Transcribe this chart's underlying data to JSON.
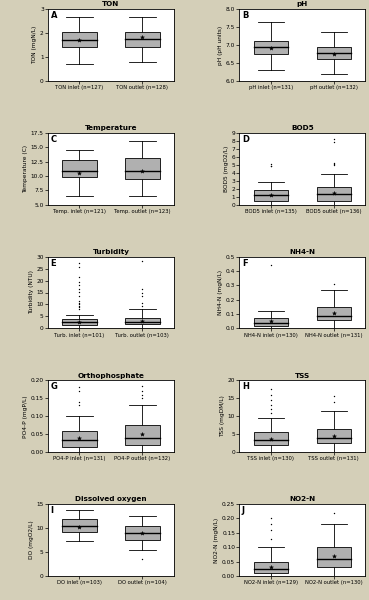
{
  "background_color": "#d4cfb8",
  "panel_bg": "#ffffff",
  "panels": [
    {
      "label": "A",
      "title": "TON",
      "ylabel": "TON (mgN/L)",
      "ylim": [
        0,
        3
      ],
      "yticks": [
        0,
        1,
        2,
        3
      ],
      "boxes": [
        {
          "name": "TON inlet (n=127)",
          "median": 1.7,
          "q1": 1.4,
          "q3": 2.05,
          "whislo": 0.7,
          "whishi": 2.65,
          "mean": 1.72,
          "fliers": []
        },
        {
          "name": "TON outlet (n=128)",
          "median": 1.75,
          "q1": 1.4,
          "q3": 2.05,
          "whislo": 0.8,
          "whishi": 2.65,
          "mean": 1.82,
          "fliers": []
        }
      ]
    },
    {
      "label": "B",
      "title": "pH",
      "ylabel": "pH (pH units)",
      "ylim": [
        6.0,
        8.0
      ],
      "yticks": [
        6.0,
        6.5,
        7.0,
        7.5,
        8.0
      ],
      "boxes": [
        {
          "name": "pH inlet (n=131)",
          "median": 6.95,
          "q1": 6.75,
          "q3": 7.1,
          "whislo": 6.3,
          "whishi": 7.65,
          "mean": 6.92,
          "fliers": []
        },
        {
          "name": "pH outlet (n=132)",
          "median": 6.78,
          "q1": 6.6,
          "q3": 6.95,
          "whislo": 6.2,
          "whishi": 7.35,
          "mean": 6.75,
          "fliers": []
        }
      ]
    },
    {
      "label": "C",
      "title": "Temperature",
      "ylabel": "Temperature (C)",
      "ylim": [
        5.0,
        17.5
      ],
      "yticks": [
        5.0,
        7.5,
        10.0,
        12.5,
        15.0,
        17.5
      ],
      "boxes": [
        {
          "name": "Temp. inlet (n=121)",
          "median": 10.8,
          "q1": 9.8,
          "q3": 12.8,
          "whislo": 6.5,
          "whishi": 14.5,
          "mean": 10.5,
          "fliers": []
        },
        {
          "name": "Temp. outlet (n=123)",
          "median": 10.8,
          "q1": 9.5,
          "q3": 13.2,
          "whislo": 6.5,
          "whishi": 16.0,
          "mean": 10.8,
          "fliers": []
        }
      ]
    },
    {
      "label": "D",
      "title": "BOD5",
      "ylabel": "BOD5 (mgO2/L)",
      "ylim": [
        0,
        9
      ],
      "yticks": [
        0,
        1,
        2,
        3,
        4,
        5,
        6,
        7,
        8,
        9
      ],
      "boxes": [
        {
          "name": "BOD5 inlet (n=135)",
          "median": 1.2,
          "q1": 0.5,
          "q3": 1.9,
          "whislo": 0.0,
          "whishi": 2.8,
          "mean": 1.2,
          "fliers": [
            4.8,
            4.9,
            5.1
          ]
        },
        {
          "name": "BOD5 outlet (n=136)",
          "median": 1.4,
          "q1": 0.5,
          "q3": 2.2,
          "whislo": 0.0,
          "whishi": 3.8,
          "mean": 1.5,
          "fliers": [
            5.0,
            5.1,
            5.2,
            7.8,
            8.2
          ]
        }
      ]
    },
    {
      "label": "E",
      "title": "Turbidity",
      "ylabel": "Turbidity (NTU)",
      "ylim": [
        0,
        30
      ],
      "yticks": [
        0,
        5,
        10,
        15,
        20,
        25,
        30
      ],
      "boxes": [
        {
          "name": "Turb. inlet (n=101)",
          "median": 2.5,
          "q1": 1.5,
          "q3": 3.8,
          "whislo": 0.0,
          "whishi": 5.8,
          "mean": 2.8,
          "fliers": [
            8.0,
            9.0,
            9.5,
            10.2,
            10.8,
            11.5,
            13.5,
            15.2,
            16.5,
            18.0,
            19.5,
            21.5,
            25.5,
            27.5
          ]
        },
        {
          "name": "Turb. outlet (n=103)",
          "median": 2.8,
          "q1": 1.8,
          "q3": 4.2,
          "whislo": 0.0,
          "whishi": 8.2,
          "mean": 3.2,
          "fliers": [
            9.2,
            10.5,
            13.5,
            15.0,
            16.5,
            28.0
          ]
        }
      ]
    },
    {
      "label": "F",
      "title": "NH4-N",
      "ylabel": "NH4-N (mgN/L)",
      "ylim": [
        0.0,
        0.5
      ],
      "yticks": [
        0.0,
        0.1,
        0.2,
        0.3,
        0.4,
        0.5
      ],
      "boxes": [
        {
          "name": "NH4-N inlet (n=130)",
          "median": 0.04,
          "q1": 0.02,
          "q3": 0.07,
          "whislo": 0.0,
          "whishi": 0.12,
          "mean": 0.05,
          "fliers": [
            0.44
          ]
        },
        {
          "name": "NH4-N outlet (n=131)",
          "median": 0.09,
          "q1": 0.06,
          "q3": 0.15,
          "whislo": 0.0,
          "whishi": 0.27,
          "mean": 0.11,
          "fliers": [
            0.31
          ]
        }
      ]
    },
    {
      "label": "G",
      "title": "Orthophosphate",
      "ylabel": "PO4-P (mgP/L)",
      "ylim": [
        0.0,
        0.2
      ],
      "yticks": [
        0.0,
        0.05,
        0.1,
        0.15,
        0.2
      ],
      "boxes": [
        {
          "name": "PO4-P inlet (n=131)",
          "median": 0.035,
          "q1": 0.015,
          "q3": 0.06,
          "whislo": 0.0,
          "whishi": 0.1,
          "mean": 0.04,
          "fliers": [
            0.13,
            0.14,
            0.17,
            0.18
          ]
        },
        {
          "name": "PO4-P outlet (n=132)",
          "median": 0.04,
          "q1": 0.02,
          "q3": 0.075,
          "whislo": 0.0,
          "whishi": 0.13,
          "mean": 0.05,
          "fliers": [
            0.15,
            0.16,
            0.17,
            0.185
          ]
        }
      ]
    },
    {
      "label": "H",
      "title": "TSS",
      "ylabel": "TSS (mgDM/L)",
      "ylim": [
        0,
        20
      ],
      "yticks": [
        0,
        5,
        10,
        15,
        20
      ],
      "boxes": [
        {
          "name": "TSS inlet (n=130)",
          "median": 3.5,
          "q1": 2.0,
          "q3": 5.5,
          "whislo": 0.0,
          "whishi": 9.5,
          "mean": 3.8,
          "fliers": [
            11.0,
            12.0,
            13.0,
            14.5,
            16.0,
            17.5
          ]
        },
        {
          "name": "TSS outlet (n=131)",
          "median": 4.0,
          "q1": 2.5,
          "q3": 6.5,
          "whislo": 0.0,
          "whishi": 11.5,
          "mean": 4.5,
          "fliers": [
            14.0,
            15.5
          ]
        }
      ]
    },
    {
      "label": "I",
      "title": "Dissolved oxygen",
      "ylabel": "DO (mgO2/L)",
      "ylim": [
        0,
        15
      ],
      "yticks": [
        0,
        5,
        10,
        15
      ],
      "boxes": [
        {
          "name": "DO inlet (n=103)",
          "median": 10.5,
          "q1": 9.2,
          "q3": 11.8,
          "whislo": 7.2,
          "whishi": 13.8,
          "mean": 10.3,
          "fliers": []
        },
        {
          "name": "DO outlet (n=104)",
          "median": 9.0,
          "q1": 7.5,
          "q3": 10.5,
          "whislo": 5.5,
          "whishi": 12.5,
          "mean": 9.0,
          "fliers": [
            3.5
          ]
        }
      ]
    },
    {
      "label": "J",
      "title": "NO2-N",
      "ylabel": "NO2-N (mgN/L)",
      "ylim": [
        0.0,
        0.25
      ],
      "yticks": [
        0.0,
        0.05,
        0.1,
        0.15,
        0.2,
        0.25
      ],
      "boxes": [
        {
          "name": "NO2-N inlet (n=129)",
          "median": 0.025,
          "q1": 0.01,
          "q3": 0.05,
          "whislo": 0.0,
          "whishi": 0.1,
          "mean": 0.03,
          "fliers": [
            0.13,
            0.16,
            0.18,
            0.2
          ]
        },
        {
          "name": "NO2-N outlet (n=130)",
          "median": 0.06,
          "q1": 0.03,
          "q3": 0.1,
          "whislo": 0.0,
          "whishi": 0.18,
          "mean": 0.07,
          "fliers": [
            0.22
          ]
        }
      ]
    }
  ]
}
